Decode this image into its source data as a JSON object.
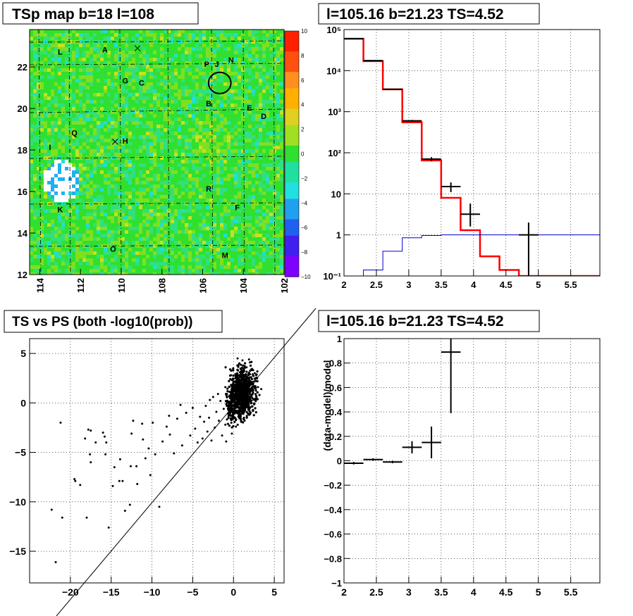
{
  "panels": {
    "map_title": "TSp map b=18 l=108",
    "spec_title": "l=105.16 b=21.23 TS=4.52",
    "scatter_title": "TS vs PS (both -log10(prob))",
    "resid_title": "l=105.16 b=21.23 TS=4.52"
  },
  "colors": {
    "data": "#000000",
    "model": "#ff0000",
    "background_model": "#0000cc"
  },
  "chart_data": [
    {
      "type": "heatmap",
      "title": "TSp map b=18 l=108",
      "x_ticks": [
        "114",
        "112",
        "110",
        "108",
        "106",
        "104",
        "102"
      ],
      "y_ticks": [
        "12",
        "14",
        "16",
        "18",
        "20",
        "22"
      ],
      "xlim": [
        114.5,
        102
      ],
      "ylim": [
        12,
        23.8
      ],
      "colorbar": {
        "range": [
          -10,
          10
        ],
        "ticks": [
          "10",
          "8",
          "6",
          "4",
          "2",
          "0",
          "−2",
          "−4",
          "−6",
          "−8",
          "−10"
        ]
      },
      "labels": [
        {
          "text": "L",
          "l": 113.0,
          "b": 22.6
        },
        {
          "text": "A",
          "l": 110.8,
          "b": 22.7
        },
        {
          "text": "G",
          "l": 109.8,
          "b": 21.2
        },
        {
          "text": "C",
          "l": 109.0,
          "b": 21.1
        },
        {
          "text": "P",
          "l": 105.8,
          "b": 22.0
        },
        {
          "text": "J",
          "l": 105.3,
          "b": 22.0
        },
        {
          "text": "N",
          "l": 104.6,
          "b": 22.2
        },
        {
          "text": "B",
          "l": 105.7,
          "b": 20.1
        },
        {
          "text": "E",
          "l": 103.7,
          "b": 19.9
        },
        {
          "text": "D",
          "l": 103.0,
          "b": 19.5
        },
        {
          "text": "Q",
          "l": 112.3,
          "b": 18.7
        },
        {
          "text": "H",
          "l": 109.8,
          "b": 18.3
        },
        {
          "text": "I",
          "l": 113.5,
          "b": 18.0
        },
        {
          "text": "R",
          "l": 105.7,
          "b": 16.0
        },
        {
          "text": "K",
          "l": 113.0,
          "b": 15.0
        },
        {
          "text": "F",
          "l": 104.3,
          "b": 15.1
        },
        {
          "text": "O",
          "l": 110.4,
          "b": 13.1
        },
        {
          "text": "M",
          "l": 104.9,
          "b": 12.8
        }
      ],
      "crosses": [
        {
          "l": 109.2,
          "b": 22.9
        },
        {
          "l": 110.3,
          "b": 18.4
        }
      ],
      "circle": {
        "l": 105.16,
        "b": 21.23,
        "r": 0.55
      }
    },
    {
      "type": "line",
      "title": "l=105.16 b=21.23 TS=4.52",
      "x_ticks": [
        "2",
        "2.5",
        "3",
        "3.5",
        "4",
        "4.5",
        "5",
        "5.5"
      ],
      "y_ticks": [
        "10⁻¹",
        "1",
        "10",
        "10²",
        "10³",
        "10⁴",
        "10⁵"
      ],
      "xlim": [
        2,
        5.95
      ],
      "ylim": [
        0.1,
        100000
      ],
      "yscale": "log",
      "grid": true,
      "series": [
        {
          "kind": "step",
          "color": "#ff0000",
          "edges": [
            2.0,
            2.3,
            2.6,
            2.9,
            3.2,
            3.5,
            3.8,
            4.1,
            4.4,
            4.7,
            5.95
          ],
          "values": [
            60000,
            17000,
            3500,
            550,
            65,
            8,
            1.3,
            0.3,
            0.14,
            0.1
          ]
        },
        {
          "kind": "step",
          "color": "#0000cc",
          "edges": [
            2.0,
            2.3,
            2.6,
            2.9,
            3.2,
            3.5,
            3.8,
            4.1,
            4.4,
            4.7,
            5.95
          ],
          "values": [
            0.1,
            0.14,
            0.4,
            0.85,
            0.97,
            1.0,
            1.0,
            1.0,
            1.0,
            1.0
          ]
        },
        {
          "kind": "errorbar",
          "color": "#000000",
          "points": [
            {
              "x": 2.15,
              "y": 60000,
              "xerr": 0.15,
              "ylo": 59500,
              "yhi": 60500
            },
            {
              "x": 2.45,
              "y": 17500,
              "xerr": 0.15,
              "ylo": 17300,
              "yhi": 17700
            },
            {
              "x": 2.75,
              "y": 3500,
              "xerr": 0.15,
              "ylo": 3400,
              "yhi": 3600
            },
            {
              "x": 3.05,
              "y": 600,
              "xerr": 0.15,
              "ylo": 570,
              "yhi": 630
            },
            {
              "x": 3.35,
              "y": 70,
              "xerr": 0.15,
              "ylo": 62,
              "yhi": 78
            },
            {
              "x": 3.65,
              "y": 15,
              "xerr": 0.15,
              "ylo": 11,
              "yhi": 19
            },
            {
              "x": 3.95,
              "y": 3.2,
              "xerr": 0.15,
              "ylo": 1.6,
              "yhi": 5.8
            },
            {
              "x": 4.85,
              "y": 1.0,
              "xerr": 0.15,
              "ylo": 0.1,
              "yhi": 2.0
            }
          ]
        }
      ]
    },
    {
      "type": "scatter",
      "title": "TS vs PS (both -log10(prob))",
      "x_ticks": [
        "−20",
        "−15",
        "−10",
        "−5",
        "0",
        "5"
      ],
      "y_ticks": [
        "−15",
        "−10",
        "−5",
        "0",
        "5"
      ],
      "xlim": [
        -25,
        6.2
      ],
      "ylim": [
        -18.2,
        6.5
      ],
      "grid": true,
      "diagonal": true,
      "points": [
        [
          -21.2,
          -2
        ],
        [
          -22.3,
          -10.8
        ],
        [
          -21.0,
          -11.6
        ],
        [
          -21.8,
          -16.1
        ],
        [
          -19.5,
          -7.7
        ],
        [
          -19.4,
          -7.9
        ],
        [
          -18.0,
          -11.6
        ],
        [
          -18.8,
          -8.3
        ],
        [
          -18.2,
          -3.6
        ],
        [
          -17.8,
          -2.7
        ],
        [
          -17.5,
          -2.8
        ],
        [
          -17.6,
          -5.2
        ],
        [
          -17.5,
          -6.0
        ],
        [
          -16.9,
          -4.0
        ],
        [
          -16.0,
          -3.0
        ],
        [
          -15.8,
          -3.4
        ],
        [
          -15.6,
          -4.0
        ],
        [
          -15.7,
          -5.2
        ],
        [
          -15.3,
          -12.6
        ],
        [
          -14.8,
          -8.4
        ],
        [
          -14.6,
          -6.5
        ],
        [
          -14.0,
          -7.9
        ],
        [
          -13.9,
          -5.7
        ],
        [
          -13.6,
          -7.9
        ],
        [
          -13.3,
          -10.9
        ],
        [
          -12.6,
          -6.4
        ],
        [
          -12.5,
          -3.1
        ],
        [
          -12.7,
          -10.3
        ],
        [
          -12.3,
          -1.8
        ],
        [
          -11.9,
          -6.4
        ],
        [
          -11.8,
          -8.2
        ],
        [
          -11.2,
          -2.1
        ],
        [
          -11.1,
          -3.7
        ],
        [
          -10.8,
          -5.6
        ],
        [
          -10.4,
          -4.6
        ],
        [
          -10.2,
          -7.3
        ],
        [
          -9.9,
          -2.0
        ],
        [
          -9.6,
          -5.2
        ],
        [
          -9.1,
          -10.5
        ],
        [
          -8.7,
          -3.9
        ],
        [
          -8.2,
          -2.4
        ],
        [
          -7.9,
          -1.3
        ],
        [
          -7.8,
          -3.2
        ],
        [
          -7.3,
          -5.1
        ],
        [
          -6.9,
          -1.6
        ],
        [
          -6.5,
          -0.2
        ],
        [
          -6.3,
          -4.3
        ],
        [
          -5.8,
          -1.0
        ],
        [
          -5.3,
          -3.3
        ],
        [
          -5.0,
          -0.5
        ],
        [
          -4.7,
          -2.6
        ],
        [
          -4.4,
          -4.0
        ],
        [
          -4.1,
          -1.4
        ],
        [
          -3.8,
          -3.6
        ],
        [
          -3.4,
          -0.3
        ],
        [
          -3.2,
          -2.9
        ],
        [
          -3.0,
          -1.5
        ],
        [
          -2.7,
          -3.8
        ],
        [
          -2.5,
          0.6
        ],
        [
          -2.3,
          -2.5
        ],
        [
          -2.1,
          -0.9
        ],
        [
          -1.8,
          -1.8
        ],
        [
          -1.6,
          0.2
        ],
        [
          -1.4,
          -3.3
        ],
        [
          -1.2,
          -0.6
        ],
        [
          -1.0,
          -2.2
        ],
        [
          -0.8,
          0.9
        ],
        [
          -0.6,
          -1.3
        ],
        [
          -0.4,
          0.5
        ],
        [
          -0.2,
          -0.8
        ],
        [
          0.0,
          1.2
        ],
        [
          0.2,
          -0.3
        ],
        [
          0.4,
          2.0
        ],
        [
          0.6,
          0.8
        ],
        [
          0.8,
          2.6
        ],
        [
          1.0,
          1.6
        ],
        [
          1.2,
          3.1
        ],
        [
          1.4,
          2.3
        ],
        [
          1.6,
          3.6
        ],
        [
          1.8,
          2.9
        ],
        [
          2.0,
          4.1
        ],
        [
          2.2,
          3.4
        ],
        [
          2.4,
          1.9
        ],
        [
          2.6,
          3.0
        ],
        [
          2.8,
          2.2
        ],
        [
          3.0,
          1.6
        ],
        [
          3.4,
          1.4
        ],
        [
          0.5,
          4.5
        ],
        [
          1.1,
          4.3
        ],
        [
          1.9,
          4.4
        ],
        [
          -0.3,
          2.8
        ],
        [
          -1.0,
          1.6
        ],
        [
          -1.9,
          0.9
        ],
        [
          -2.9,
          0.3
        ],
        [
          -3.6,
          -1.9
        ],
        [
          -0.9,
          -3.9
        ],
        [
          -0.2,
          -3.1
        ],
        [
          0.3,
          -2.4
        ],
        [
          0.9,
          -1.3
        ],
        [
          1.5,
          0.1
        ]
      ]
    },
    {
      "type": "line",
      "title": "l=105.16 b=21.23 TS=4.52",
      "ylabel": "(data-model)/model",
      "x_ticks": [
        "2",
        "2.5",
        "3",
        "3.5",
        "4",
        "4.5",
        "5",
        "5.5"
      ],
      "y_ticks": [
        "−1",
        "−0.8",
        "−0.6",
        "−0.4",
        "−0.2",
        "0",
        "0.2",
        "0.4",
        "0.6",
        "0.8",
        "1"
      ],
      "xlim": [
        2,
        5.95
      ],
      "ylim": [
        -1,
        1
      ],
      "grid": true,
      "points": [
        {
          "x": 2.15,
          "y": -0.02,
          "xerr": 0.15,
          "yerr": 0.01
        },
        {
          "x": 2.45,
          "y": 0.01,
          "xerr": 0.15,
          "yerr": 0.01
        },
        {
          "x": 2.75,
          "y": -0.01,
          "xerr": 0.15,
          "yerr": 0.01
        },
        {
          "x": 3.05,
          "y": 0.11,
          "xerr": 0.15,
          "yerr": 0.05
        },
        {
          "x": 3.35,
          "y": 0.15,
          "xerr": 0.15,
          "yerr": 0.13
        },
        {
          "x": 3.65,
          "y": 0.89,
          "xerr": 0.15,
          "yerr": 0.5
        }
      ]
    }
  ]
}
